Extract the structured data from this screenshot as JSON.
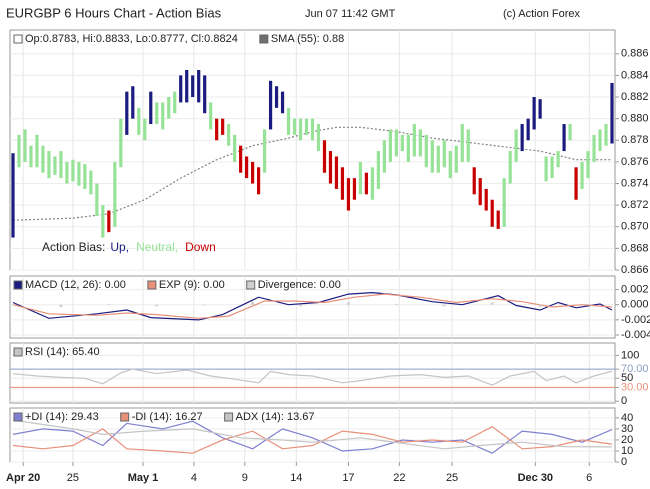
{
  "header": {
    "title": "EURGBP 6 Hours Chart - Action Bias",
    "time": "Jun 07 11:42 GMT",
    "copyright": "(c) Action Forex"
  },
  "chart_data": [
    {
      "type": "ohlc",
      "info": "Op:0.8783, Hi:0.8833, Lo:0.8777, Cl:0.8824",
      "ylim": [
        0.866,
        0.8882
      ],
      "yticks": [
        0.866,
        0.868,
        {
          "value": 0.87,
          "label": "0.870"
        },
        0.872,
        0.874,
        0.876,
        0.878,
        {
          "value": 0.88,
          "label": "0.880"
        },
        0.882,
        0.884,
        0.886
      ],
      "bias_label": "Action Bias:",
      "series": [
        {
          "name": "Up,",
          "color": "#1c1c80",
          "bars": [
            [
              0,
              0.869,
              0.8768
            ],
            [
              19,
              0.8785,
              0.8825
            ],
            [
              20,
              0.88,
              0.883
            ],
            [
              23,
              0.8795,
              0.8825
            ],
            [
              28,
              0.8815,
              0.884
            ],
            [
              29,
              0.8815,
              0.8845
            ],
            [
              30,
              0.882,
              0.884
            ],
            [
              31,
              0.8815,
              0.8845
            ],
            [
              32,
              0.8805,
              0.884
            ],
            [
              43,
              0.879,
              0.8835
            ],
            [
              44,
              0.881,
              0.883
            ],
            [
              45,
              0.8805,
              0.8825
            ],
            [
              85,
              0.877,
              0.8795
            ],
            [
              86,
              0.878,
              0.88
            ],
            [
              87,
              0.879,
              0.882
            ],
            [
              88,
              0.88,
              0.8818
            ],
            [
              92,
              0.877,
              0.8795
            ],
            [
              100,
              0.8777,
              0.8833
            ]
          ]
        },
        {
          "name": "Neutral,",
          "color": "#96e296",
          "bars": [
            [
              1,
              0.8755,
              0.8785
            ],
            [
              2,
              0.876,
              0.879
            ],
            [
              3,
              0.8755,
              0.8775
            ],
            [
              4,
              0.8755,
              0.8785
            ],
            [
              5,
              0.875,
              0.8775
            ],
            [
              6,
              0.8745,
              0.877
            ],
            [
              7,
              0.8748,
              0.8765
            ],
            [
              8,
              0.8745,
              0.877
            ],
            [
              9,
              0.874,
              0.876
            ],
            [
              10,
              0.8742,
              0.8762
            ],
            [
              11,
              0.8738,
              0.876
            ],
            [
              12,
              0.8735,
              0.8758
            ],
            [
              13,
              0.873,
              0.8752
            ],
            [
              14,
              0.871,
              0.874
            ],
            [
              15,
              0.869,
              0.872
            ],
            [
              17,
              0.87,
              0.876
            ],
            [
              18,
              0.8755,
              0.88
            ],
            [
              21,
              0.8785,
              0.881
            ],
            [
              22,
              0.878,
              0.88
            ],
            [
              24,
              0.8795,
              0.8815
            ],
            [
              25,
              0.879,
              0.8815
            ],
            [
              26,
              0.88,
              0.882
            ],
            [
              27,
              0.8805,
              0.8825
            ],
            [
              33,
              0.879,
              0.8815
            ],
            [
              36,
              0.8775,
              0.8795
            ],
            [
              37,
              0.876,
              0.8785
            ],
            [
              42,
              0.875,
              0.879
            ],
            [
              46,
              0.8785,
              0.881
            ],
            [
              47,
              0.8785,
              0.88
            ],
            [
              48,
              0.878,
              0.88
            ],
            [
              49,
              0.8785,
              0.88
            ],
            [
              50,
              0.878,
              0.88
            ],
            [
              51,
              0.877,
              0.8795
            ],
            [
              58,
              0.873,
              0.876
            ],
            [
              60,
              0.8725,
              0.8755
            ],
            [
              61,
              0.8735,
              0.877
            ],
            [
              62,
              0.875,
              0.878
            ],
            [
              63,
              0.876,
              0.879
            ],
            [
              64,
              0.8765,
              0.879
            ],
            [
              65,
              0.877,
              0.8785
            ],
            [
              66,
              0.876,
              0.8785
            ],
            [
              67,
              0.8765,
              0.8795
            ],
            [
              68,
              0.8765,
              0.879
            ],
            [
              69,
              0.8755,
              0.8785
            ],
            [
              70,
              0.875,
              0.878
            ],
            [
              71,
              0.875,
              0.8775
            ],
            [
              72,
              0.8755,
              0.878
            ],
            [
              73,
              0.8745,
              0.877
            ],
            [
              74,
              0.875,
              0.8775
            ],
            [
              75,
              0.876,
              0.8795
            ],
            [
              76,
              0.876,
              0.879
            ],
            [
              82,
              0.87,
              0.8745
            ],
            [
              83,
              0.874,
              0.877
            ],
            [
              84,
              0.876,
              0.879
            ],
            [
              89,
              0.8742,
              0.8765
            ],
            [
              90,
              0.8745,
              0.8765
            ],
            [
              91,
              0.8755,
              0.877
            ],
            [
              93,
              0.878,
              0.8795
            ],
            [
              95,
              0.8735,
              0.876
            ],
            [
              96,
              0.8745,
              0.877
            ],
            [
              97,
              0.876,
              0.8785
            ],
            [
              98,
              0.877,
              0.879
            ],
            [
              99,
              0.8775,
              0.8795
            ]
          ]
        },
        {
          "name": "Down",
          "color": "#c80000",
          "bars": [
            [
              16,
              0.8695,
              0.8715
            ],
            [
              34,
              0.878,
              0.88
            ],
            [
              35,
              0.8785,
              0.88
            ],
            [
              38,
              0.875,
              0.8775
            ],
            [
              39,
              0.8745,
              0.8765
            ],
            [
              40,
              0.874,
              0.876
            ],
            [
              41,
              0.873,
              0.8755
            ],
            [
              52,
              0.875,
              0.878
            ],
            [
              53,
              0.874,
              0.877
            ],
            [
              54,
              0.8735,
              0.8765
            ],
            [
              55,
              0.8725,
              0.8755
            ],
            [
              56,
              0.8715,
              0.8745
            ],
            [
              57,
              0.8725,
              0.8745
            ],
            [
              59,
              0.873,
              0.875
            ],
            [
              77,
              0.873,
              0.8755
            ],
            [
              78,
              0.872,
              0.8745
            ],
            [
              79,
              0.8715,
              0.8735
            ],
            [
              80,
              0.87,
              0.8725
            ],
            [
              81,
              0.8698,
              0.8715
            ],
            [
              94,
              0.8725,
              0.8755
            ]
          ]
        }
      ],
      "sma": {
        "name": "SMA (55): 0.88",
        "color": "#808080",
        "x": [
          0,
          10,
          16,
          22,
          28,
          34,
          40,
          46,
          50,
          54,
          58,
          64,
          70,
          76,
          82,
          88,
          94,
          100
        ],
        "values": [
          0.8706,
          0.8708,
          0.8712,
          0.8725,
          0.8745,
          0.8762,
          0.8775,
          0.8782,
          0.8788,
          0.8792,
          0.8792,
          0.8788,
          0.8782,
          0.8778,
          0.8774,
          0.877,
          0.8762,
          0.8762
        ]
      }
    },
    {
      "type": "line",
      "ylim": [
        -0.0044,
        0.0038
      ],
      "yticks": [
        -0.004,
        -0.002,
        {
          "value": 0,
          "label": "0.000"
        },
        0.002
      ],
      "series": [
        {
          "name": "MACD (12, 26): 0.00",
          "color": "#1c1c80",
          "x": [
            0,
            6,
            14,
            19,
            23,
            31,
            35,
            41,
            46,
            51,
            56,
            60,
            64,
            70,
            75,
            81,
            84,
            88,
            91,
            94,
            98,
            100
          ],
          "values": [
            0.0003,
            -0.0018,
            -0.0012,
            -0.0007,
            -0.0017,
            -0.002,
            -0.0013,
            0.001,
            0,
            0.0003,
            0.0014,
            0.0016,
            0.0013,
            0.0004,
            0,
            0.0012,
            -0.0001,
            -0.0007,
            0.0003,
            -0.0004,
            0.0001,
            -0.0007
          ]
        },
        {
          "name": "EXP (9): 0.00",
          "color": "#e8907a",
          "x": [
            0,
            6,
            14,
            19,
            24,
            31,
            36,
            42,
            47,
            52,
            57,
            62,
            68,
            74,
            80,
            85,
            90,
            95,
            100
          ],
          "values": [
            0,
            -0.0012,
            -0.0014,
            -0.0011,
            -0.0013,
            -0.0018,
            -0.0015,
            0.0005,
            0.0005,
            0.0003,
            0.001,
            0.0014,
            0.001,
            0.0003,
            0.0008,
            0.0004,
            -0.0003,
            0,
            -0.0003
          ]
        },
        {
          "name": "Divergence: 0.00",
          "color": "#d0d0d0",
          "kind": "bar",
          "x": [
            0,
            8,
            16,
            24,
            32,
            40,
            48,
            56,
            64,
            72,
            80,
            88,
            96
          ],
          "values": [
            0.0001,
            -0.0003,
            0.0001,
            -0.0002,
            -0.0001,
            0.0004,
            -0.0002,
            0.0003,
            0.0001,
            -0.0002,
            0.0003,
            -0.0003,
            0.0001
          ]
        }
      ]
    },
    {
      "type": "line",
      "ylim": [
        -4,
        127
      ],
      "yticks": [
        0,
        {
          "value": 30,
          "label": "30.00"
        },
        50,
        {
          "value": 70,
          "label": "70.00"
        },
        100
      ],
      "levels": [
        {
          "value": 70,
          "color": "#8ca0c8"
        },
        {
          "value": 30,
          "color": "#e8907a"
        }
      ],
      "series": [
        {
          "name": "RSI (14): 65.40",
          "color": "#c4c4c4",
          "x": [
            0,
            4,
            8,
            12,
            15,
            18,
            20,
            24,
            29,
            33,
            37,
            41,
            43,
            46,
            50,
            55,
            58,
            63,
            68,
            72,
            76,
            80,
            83,
            87,
            89,
            92,
            94,
            97,
            100
          ],
          "values": [
            60,
            55,
            52,
            50,
            38,
            62,
            70,
            60,
            68,
            55,
            48,
            40,
            65,
            58,
            55,
            40,
            45,
            55,
            58,
            52,
            55,
            35,
            55,
            65,
            45,
            55,
            40,
            55,
            65.4
          ]
        }
      ]
    },
    {
      "type": "line",
      "ylim": [
        0,
        49
      ],
      "yticks": [
        0,
        10,
        20,
        30,
        40
      ],
      "xlim": [
        -0.5,
        100.5
      ],
      "xticks": [
        {
          "value": 1.7,
          "label": "Apr 20"
        },
        {
          "value": 10,
          "label": "25"
        },
        {
          "value": 21.7,
          "label": "May 1"
        },
        {
          "value": 30.2,
          "label": "4"
        },
        {
          "value": 38.7,
          "label": "9"
        },
        {
          "value": 47.3,
          "label": "14"
        },
        {
          "value": 56,
          "label": "17"
        },
        {
          "value": 64.5,
          "label": "22"
        },
        {
          "value": 73.3,
          "label": "25"
        },
        {
          "value": 87.2,
          "label": "Dec 30"
        },
        {
          "value": 96.2,
          "label": "6"
        }
      ],
      "series": [
        {
          "name": "+DI (14): 29.43",
          "color": "#8080d0",
          "x": [
            0,
            5,
            10,
            15,
            19,
            25,
            30,
            35,
            40,
            45,
            50,
            55,
            60,
            65,
            70,
            75,
            80,
            85,
            90,
            95,
            100
          ],
          "values": [
            25,
            30,
            28,
            15,
            35,
            30,
            37,
            22,
            12,
            30,
            22,
            10,
            12,
            20,
            18,
            20,
            8,
            28,
            25,
            18,
            29.43
          ]
        },
        {
          "name": "-DI (14): 16.27",
          "color": "#e8907a",
          "x": [
            0,
            5,
            10,
            15,
            19,
            25,
            30,
            35,
            40,
            45,
            50,
            55,
            60,
            65,
            70,
            75,
            80,
            85,
            90,
            95,
            100
          ],
          "values": [
            15,
            12,
            15,
            30,
            12,
            10,
            8,
            20,
            28,
            12,
            15,
            28,
            25,
            18,
            20,
            18,
            32,
            12,
            14,
            20,
            16.27
          ]
        },
        {
          "name": "ADX (14): 13.67",
          "color": "#c4c4c4",
          "x": [
            0,
            10,
            15,
            22,
            30,
            38,
            45,
            50,
            58,
            65,
            72,
            78,
            85,
            92,
            100
          ],
          "values": [
            38,
            30,
            25,
            28,
            30,
            22,
            20,
            18,
            22,
            17,
            12,
            15,
            18,
            14,
            13.67
          ]
        }
      ]
    }
  ]
}
